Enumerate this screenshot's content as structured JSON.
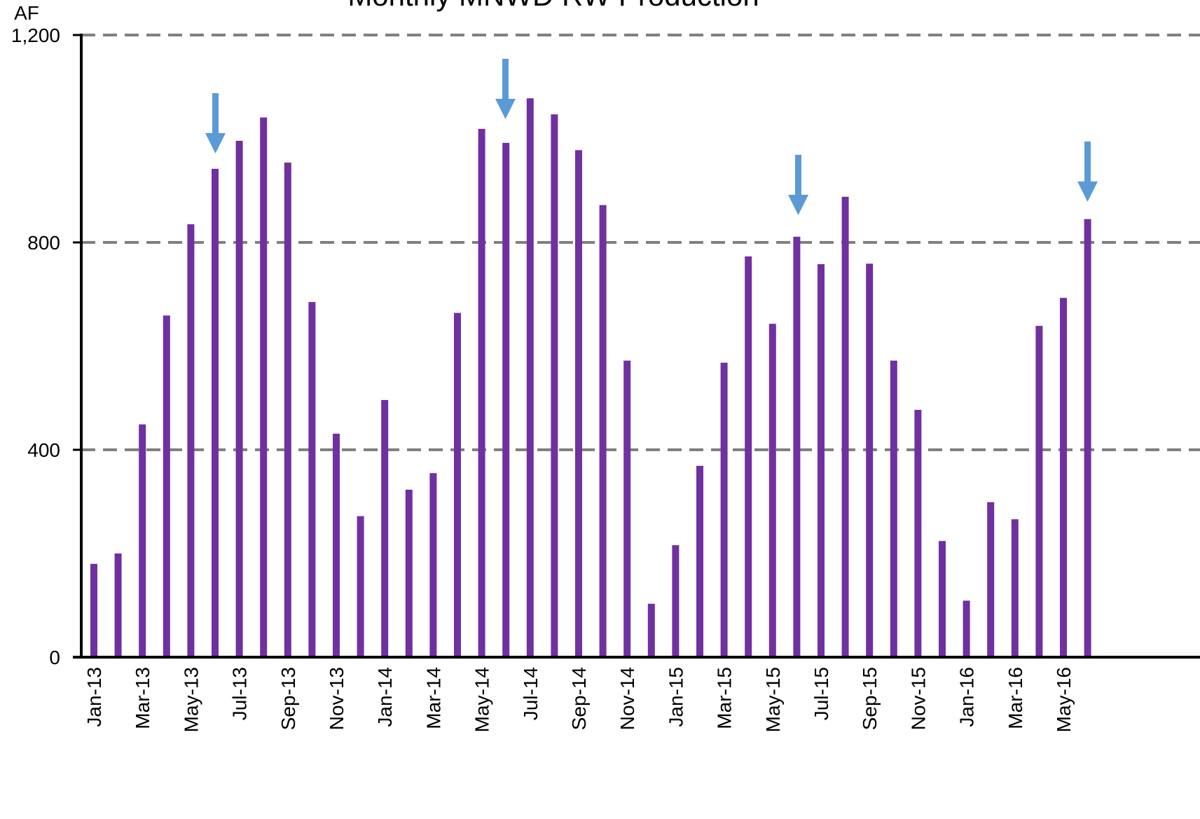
{
  "chart_data": {
    "type": "bar",
    "title": "Monthly MNWD RW Production",
    "y_label": "AF",
    "categories": [
      "Jan-13",
      null,
      "Mar-13",
      null,
      "May-13",
      null,
      "Jul-13",
      null,
      "Sep-13",
      null,
      "Nov-13",
      null,
      "Jan-14",
      null,
      "Mar-14",
      null,
      "May-14",
      null,
      "Jul-14",
      null,
      "Sep-14",
      null,
      "Nov-14",
      null,
      "Jan-15",
      null,
      "Mar-15",
      null,
      "May-15",
      null,
      "Jul-15",
      null,
      "Sep-15",
      null,
      "Nov-15",
      null,
      "Jan-16",
      null,
      "Mar-16",
      null,
      "May-16",
      null
    ],
    "values": [
      180,
      200,
      449,
      659,
      835,
      942,
      996,
      1041,
      954,
      685,
      431,
      272,
      496,
      323,
      355,
      664,
      1019,
      992,
      1078,
      1047,
      978,
      872,
      572,
      103,
      216,
      369,
      568,
      773,
      643,
      811,
      758,
      888,
      759,
      572,
      477,
      224,
      109,
      299,
      266,
      639,
      693,
      845
    ],
    "color": "#7030a0",
    "ylim": [
      0,
      1200
    ],
    "yticks": [
      0,
      400,
      800,
      {
        "value": 1200,
        "label": "1,200"
      }
    ],
    "grid": true
  }
}
